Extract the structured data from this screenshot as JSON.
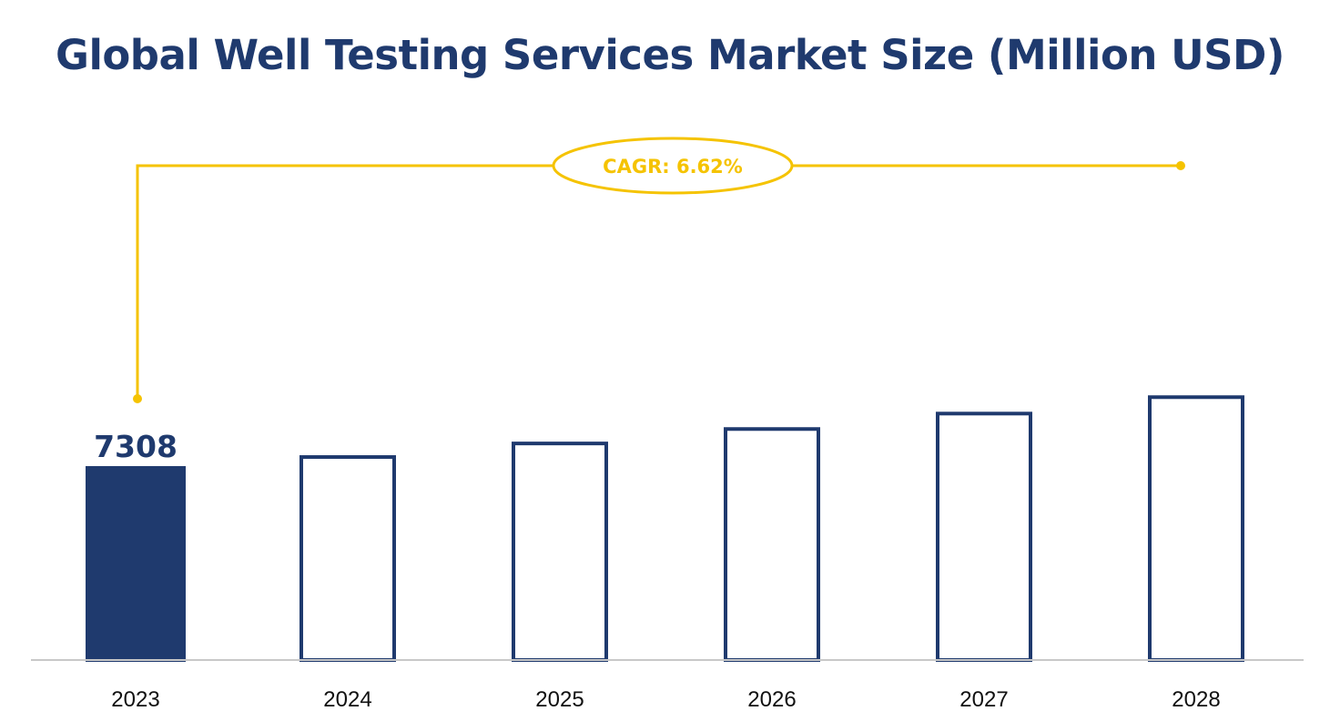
{
  "chart_data": {
    "type": "bar",
    "title": "Global Well Testing Services Market Size (Million USD)",
    "categories": [
      "2023",
      "2024",
      "2025",
      "2026",
      "2027",
      "2028"
    ],
    "values": [
      7308,
      7792,
      8308,
      8858,
      9445,
      10070
    ],
    "data_labels": [
      "7308",
      "",
      "",
      "",
      "",
      ""
    ],
    "highlighted_index": 0,
    "ylim": [
      0,
      11000
    ],
    "grid": false,
    "xlabel": "",
    "ylabel": "",
    "annotation": {
      "text": "CAGR: 6.62%",
      "from": "2023",
      "to": "2028"
    },
    "colors": {
      "bar": "#1f3a6e",
      "accent": "#f5c300",
      "axis": "#c8c8c8"
    }
  }
}
